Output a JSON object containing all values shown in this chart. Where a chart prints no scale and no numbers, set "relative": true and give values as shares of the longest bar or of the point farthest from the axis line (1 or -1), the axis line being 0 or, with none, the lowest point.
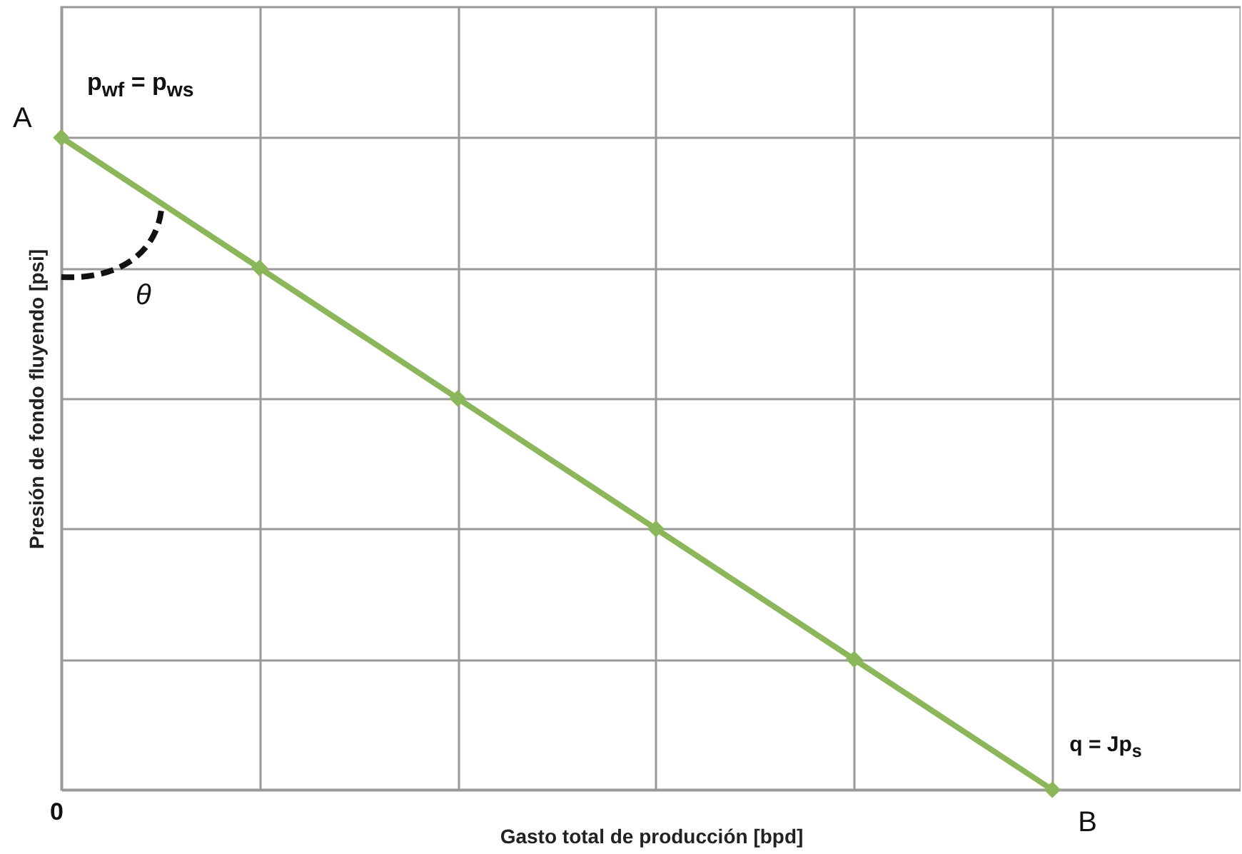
{
  "chart_data": {
    "type": "line",
    "relative": true,
    "xlabel": "Gasto total de producción [bpd]",
    "ylabel": "Presión de fondo fluyendo [psi]",
    "categories": [
      null,
      null,
      null,
      null,
      null,
      null
    ],
    "series": [
      {
        "color": "#8cb65a",
        "values": [
          1,
          0.8,
          0.6,
          0.4,
          0.2,
          0
        ]
      }
    ],
    "annotations": [
      "A",
      "p$_{wf}$ = p$_{ws}$",
      "θ",
      "q = Jp$_{s}$",
      "B",
      "0"
    ],
    "marker": "diamond",
    "grid": true,
    "line_style": "solid"
  }
}
